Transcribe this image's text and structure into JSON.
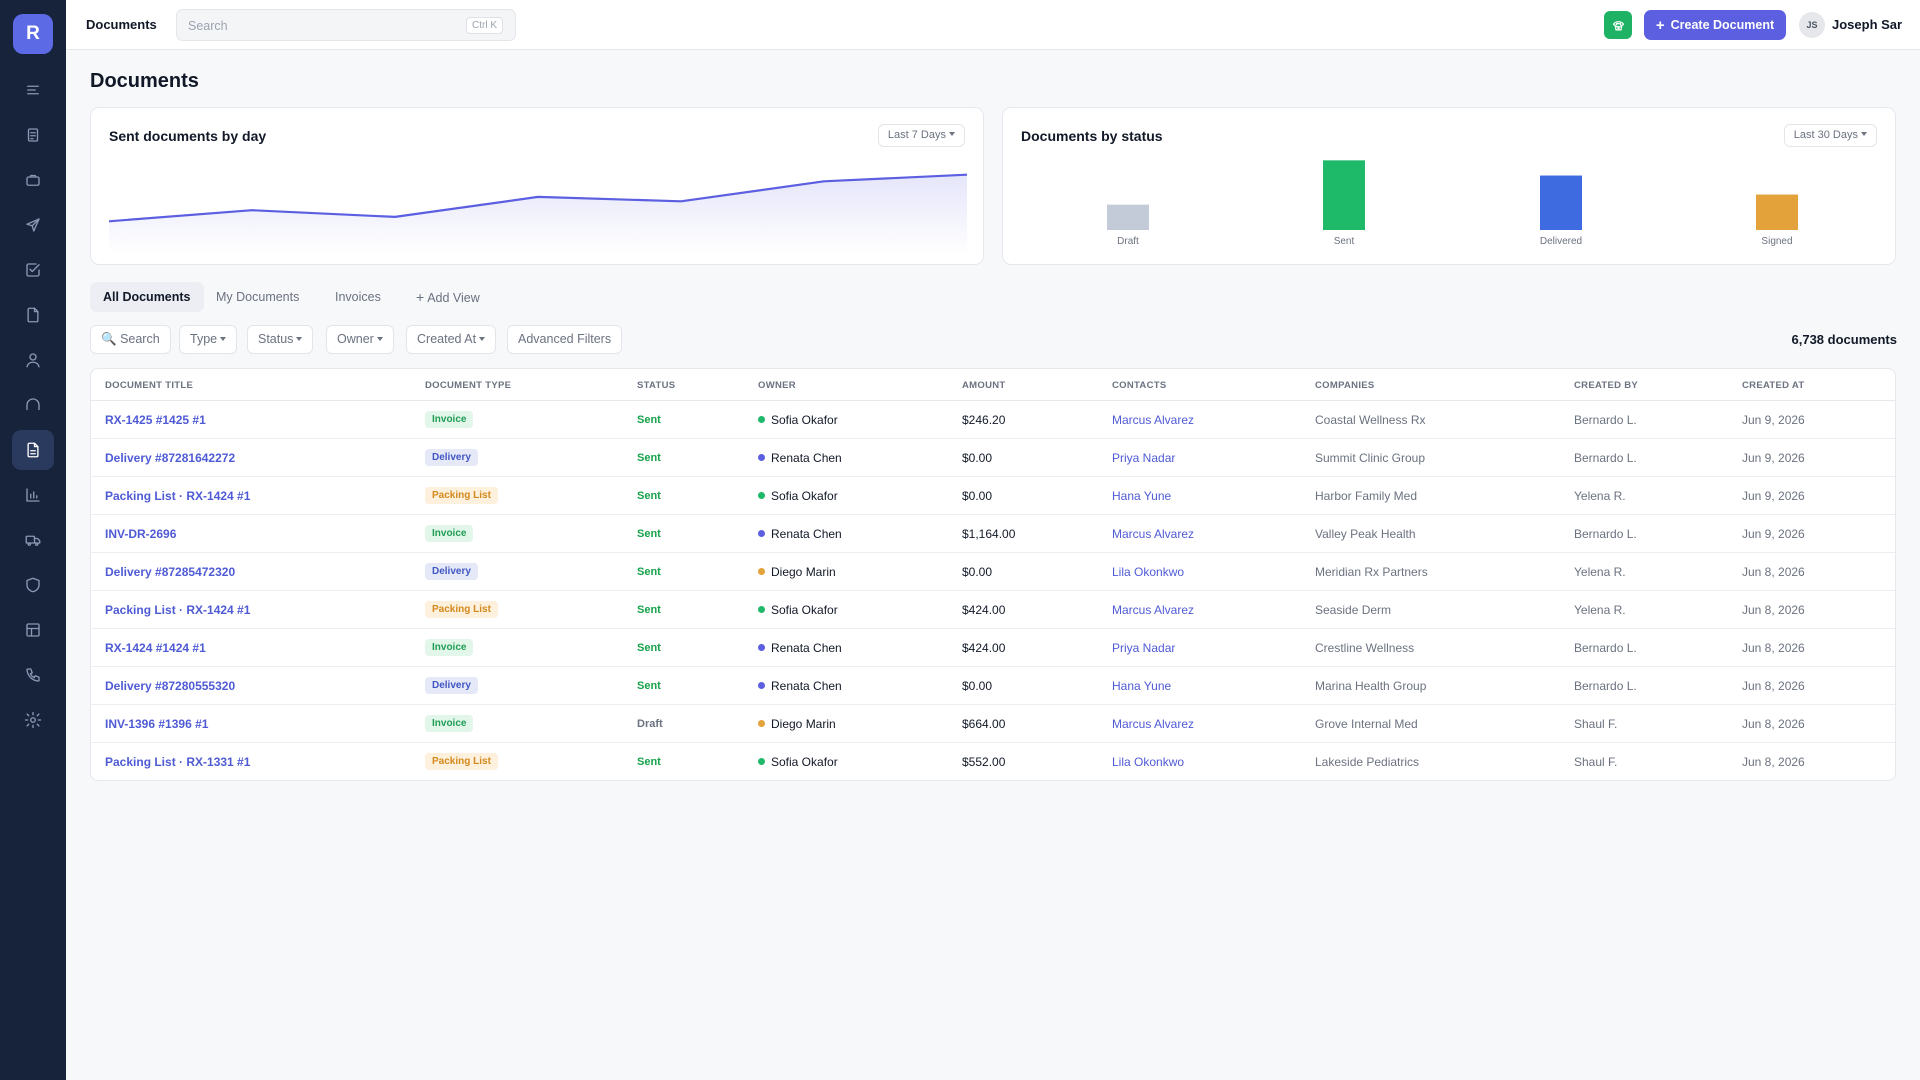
{
  "sidebar": {
    "logo": "R",
    "items": [
      {
        "icon": "menu-icon"
      },
      {
        "icon": "clipboard-icon"
      },
      {
        "icon": "briefcase-icon"
      },
      {
        "icon": "send-icon"
      },
      {
        "icon": "check-square-icon"
      },
      {
        "icon": "file-icon"
      },
      {
        "icon": "user-icon"
      },
      {
        "icon": "headset-icon"
      },
      {
        "icon": "documents-icon",
        "active": true
      },
      {
        "icon": "bar-chart-icon"
      },
      {
        "icon": "truck-icon"
      },
      {
        "icon": "shield-icon"
      },
      {
        "icon": "table-icon"
      },
      {
        "icon": "phone-icon"
      },
      {
        "icon": "settings-icon"
      }
    ]
  },
  "header": {
    "title": "Documents",
    "search_placeholder": "Search",
    "search_shortcut": "Ctrl K",
    "create_label": "Create Document",
    "user_initials": "JS",
    "user_name": "Joseph Sar"
  },
  "page": {
    "title": "Documents"
  },
  "cards": {
    "sent_by_day": {
      "title": "Sent documents by day",
      "range": "Last 7 Days"
    },
    "by_status": {
      "title": "Documents by status",
      "range": "Last 30 Days"
    }
  },
  "chart_data": [
    {
      "type": "area",
      "title": "Sent documents by day",
      "values": [
        12,
        17,
        14,
        23,
        21,
        30,
        33
      ],
      "ylim": [
        0,
        45
      ],
      "grid": false,
      "color": "#5b5fe0"
    },
    {
      "type": "bar",
      "title": "Documents by status",
      "categories": [
        "Draft",
        "Sent",
        "Delivered",
        "Signed"
      ],
      "values": [
        20,
        55,
        43,
        28
      ],
      "ylim": [
        0,
        60
      ],
      "colors": [
        "#c3cad8",
        "#1fb96a",
        "#3f6be0",
        "#e3a23a"
      ]
    }
  ],
  "tabs": [
    {
      "label": "All Documents",
      "active": true
    },
    {
      "label": "My Documents"
    },
    {
      "label": "Invoices"
    },
    {
      "label": "Add View"
    }
  ],
  "filters": {
    "search": "Search",
    "type": "Type",
    "status": "Status",
    "owner": "Owner",
    "created_at": "Created At",
    "advanced": "Advanced Filters",
    "count": "6,738 documents"
  },
  "table": {
    "columns": [
      "DOCUMENT TITLE",
      "DOCUMENT TYPE",
      "STATUS",
      "OWNER",
      "AMOUNT",
      "CONTACTS",
      "COMPANIES",
      "CREATED BY",
      "CREATED AT"
    ],
    "rows": [
      {
        "title": "RX-1425 #1425 #1",
        "type": "Invoice",
        "status": "Sent",
        "owner": "Sofia Okafor",
        "amount": "$246.20",
        "contact": "Marcus Alvarez",
        "company": "Coastal Wellness Rx",
        "created_by": "Bernardo L.",
        "created_at": "Jun 9, 2026"
      },
      {
        "title": "Delivery #87281642272",
        "type": "Delivery",
        "status": "Sent",
        "owner": "Renata Chen",
        "amount": "$0.00",
        "contact": "Priya Nadar",
        "company": "Summit Clinic Group",
        "created_by": "Bernardo L.",
        "created_at": "Jun 9, 2026"
      },
      {
        "title": "Packing List · RX-1424 #1",
        "type": "Packing List",
        "status": "Sent",
        "owner": "Sofia Okafor",
        "amount": "$0.00",
        "contact": "Hana Yune",
        "company": "Harbor Family Med",
        "created_by": "Yelena R.",
        "created_at": "Jun 9, 2026"
      },
      {
        "title": "INV-DR-2696",
        "type": "Invoice",
        "status": "Sent",
        "owner": "Renata Chen",
        "amount": "$1,164.00",
        "contact": "Marcus Alvarez",
        "company": "Valley Peak Health",
        "created_by": "Bernardo L.",
        "created_at": "Jun 9, 2026"
      },
      {
        "title": "Delivery #87285472320",
        "type": "Delivery",
        "status": "Sent",
        "owner": "Diego Marin",
        "amount": "$0.00",
        "contact": "Lila Okonkwo",
        "company": "Meridian Rx Partners",
        "created_by": "Yelena R.",
        "created_at": "Jun 8, 2026"
      },
      {
        "title": "Packing List · RX-1424 #1",
        "type": "Packing List",
        "status": "Sent",
        "owner": "Sofia Okafor",
        "amount": "$424.00",
        "contact": "Marcus Alvarez",
        "company": "Seaside Derm",
        "created_by": "Yelena R.",
        "created_at": "Jun 8, 2026"
      },
      {
        "title": "RX-1424 #1424 #1",
        "type": "Invoice",
        "status": "Sent",
        "owner": "Renata Chen",
        "amount": "$424.00",
        "contact": "Priya Nadar",
        "company": "Crestline Wellness",
        "created_by": "Bernardo L.",
        "created_at": "Jun 8, 2026"
      },
      {
        "title": "Delivery #87280555320",
        "type": "Delivery",
        "status": "Sent",
        "owner": "Renata Chen",
        "amount": "$0.00",
        "contact": "Hana Yune",
        "company": "Marina Health Group",
        "created_by": "Bernardo L.",
        "created_at": "Jun 8, 2026"
      },
      {
        "title": "INV-1396 #1396 #1",
        "type": "Invoice",
        "status": "Draft",
        "owner": "Diego Marin",
        "amount": "$664.00",
        "contact": "Marcus Alvarez",
        "company": "Grove Internal Med",
        "created_by": "Shaul F.",
        "created_at": "Jun 8, 2026"
      },
      {
        "title": "Packing List · RX-1331 #1",
        "type": "Packing List",
        "status": "Sent",
        "owner": "Sofia Okafor",
        "amount": "$552.00",
        "contact": "Lila Okonkwo",
        "company": "Lakeside Pediatrics",
        "created_by": "Shaul F.",
        "created_at": "Jun 8, 2026"
      }
    ]
  },
  "colors": {
    "accent": "#5b5fe0",
    "sidebar_bg": "#17233b",
    "status_sent": "#16a34a",
    "status_draft": "#6b7280",
    "badge_invoice_bg": "#e3f6ea",
    "badge_invoice_fg": "#1f9d55",
    "badge_delivery_bg": "#e4e8f7",
    "badge_delivery_fg": "#4257c4",
    "badge_packing_bg": "#fdf0dc",
    "badge_packing_fg": "#d4891c",
    "owner_sofia": "#1fb96a",
    "owner_renata": "#5b5fe0",
    "owner_diego": "#e3a23a"
  }
}
